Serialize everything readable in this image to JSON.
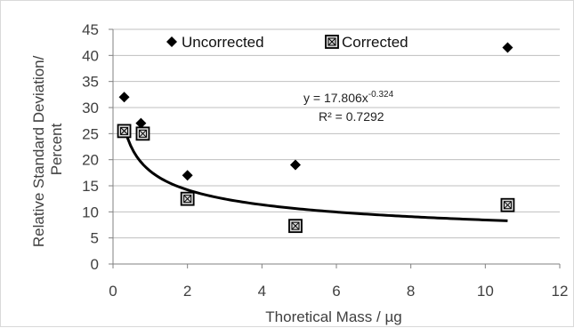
{
  "chart_data": {
    "type": "scatter",
    "xlabel": "Thoretical Mass / µg",
    "ylabel_line1": "Relative Standard Deviation/",
    "ylabel_line2": "Percent",
    "xlim": [
      0,
      12
    ],
    "ylim": [
      0,
      45
    ],
    "x_ticks": [
      0,
      2,
      4,
      6,
      8,
      10,
      12
    ],
    "y_ticks": [
      0,
      5,
      10,
      15,
      20,
      25,
      30,
      35,
      40,
      45
    ],
    "grid": "horizontal",
    "legend_position": "top",
    "series": [
      {
        "name": "Uncorrected",
        "marker": "diamond",
        "color": "#000000",
        "points": [
          {
            "x": 0.3,
            "y": 32
          },
          {
            "x": 0.75,
            "y": 27
          },
          {
            "x": 2.0,
            "y": 17
          },
          {
            "x": 4.9,
            "y": 19
          },
          {
            "x": 10.6,
            "y": 41.5
          }
        ]
      },
      {
        "name": "Corrected",
        "marker": "square-x",
        "color": "#000000",
        "points": [
          {
            "x": 0.3,
            "y": 25.5
          },
          {
            "x": 0.8,
            "y": 25
          },
          {
            "x": 2.0,
            "y": 12.5
          },
          {
            "x": 4.9,
            "y": 7.3
          },
          {
            "x": 10.6,
            "y": 11.3
          }
        ]
      }
    ],
    "trendline": {
      "type": "power",
      "coefficient": 17.806,
      "exponent": -0.324,
      "x_start": 0.3,
      "x_end": 10.6,
      "equation_text": "y = 17.806x",
      "equation_exponent": "-0.324",
      "r2_text": "R² = 0.7292"
    }
  }
}
